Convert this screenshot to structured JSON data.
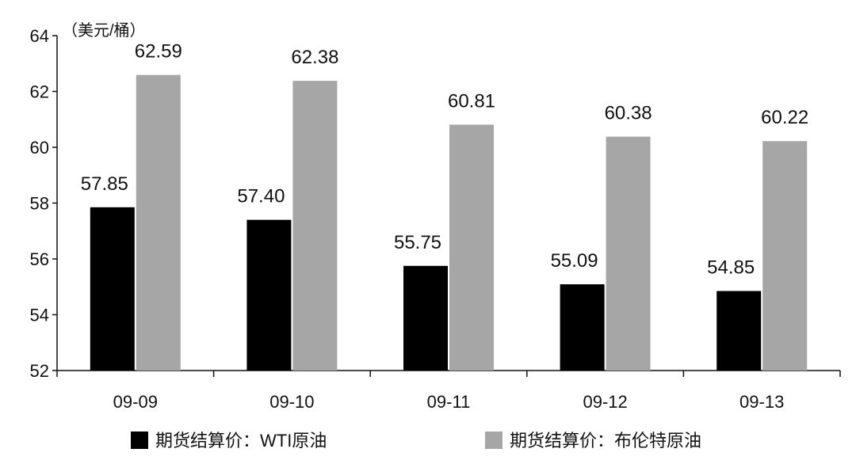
{
  "chart_data": {
    "type": "bar",
    "unit_label": "（美元/桶）",
    "categories": [
      "09-09",
      "09-10",
      "09-11",
      "09-12",
      "09-13"
    ],
    "series": [
      {
        "name": "期货结算价：WTI原油",
        "color": "#000000",
        "values": [
          57.85,
          57.4,
          55.75,
          55.09,
          54.85
        ],
        "labels": [
          "57.85",
          "57.40",
          "55.75",
          "55.09",
          "54.85"
        ]
      },
      {
        "name": "期货结算价：布伦特原油",
        "color": "#a6a6a6",
        "values": [
          62.59,
          62.38,
          60.81,
          60.38,
          60.22
        ],
        "labels": [
          "62.59",
          "62.38",
          "60.81",
          "60.38",
          "60.22"
        ]
      }
    ],
    "ylim": [
      52,
      64
    ],
    "yticks": [
      52,
      54,
      56,
      58,
      60,
      62,
      64
    ],
    "legend_position": "bottom",
    "grid": false
  }
}
